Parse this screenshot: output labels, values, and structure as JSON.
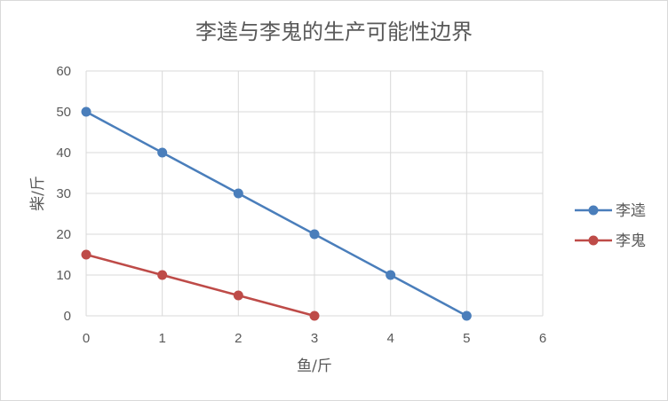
{
  "chart_data": {
    "type": "scatter",
    "title": "李逵与李鬼的生产可能性边界",
    "xlabel": "鱼/斤",
    "ylabel": "柴/斤",
    "xlim": [
      0,
      6
    ],
    "ylim": [
      0,
      60
    ],
    "x_ticks": [
      "0",
      "1",
      "2",
      "3",
      "4",
      "5",
      "6"
    ],
    "y_ticks": [
      "0",
      "10",
      "20",
      "30",
      "40",
      "50",
      "60"
    ],
    "grid": true,
    "legend_position": "right",
    "series": [
      {
        "name": "李逵",
        "color": "#4a7ebb",
        "points": [
          [
            0,
            50
          ],
          [
            1,
            40
          ],
          [
            2,
            30
          ],
          [
            3,
            20
          ],
          [
            4,
            10
          ],
          [
            5,
            0
          ]
        ]
      },
      {
        "name": "李鬼",
        "color": "#be4b48",
        "points": [
          [
            0,
            15
          ],
          [
            1,
            10
          ],
          [
            2,
            5
          ],
          [
            3,
            0
          ]
        ]
      }
    ]
  }
}
